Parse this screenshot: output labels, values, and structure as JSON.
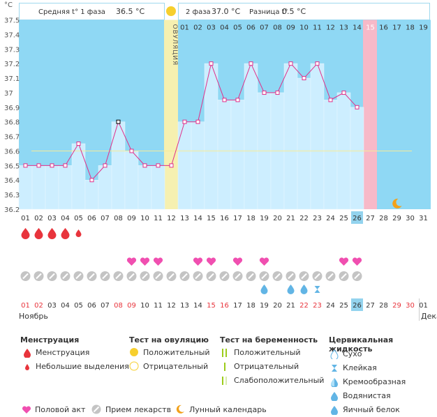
{
  "chart_data": {
    "type": "line",
    "y_unit": "°C",
    "ylim": [
      36.2,
      37.5
    ],
    "y_ticks": [
      "37.5",
      "37.4",
      "37.3",
      "37.2",
      "37.1",
      "37",
      "36.9",
      "36.8",
      "36.7",
      "36.6",
      "36.5",
      "36.4",
      "36.3",
      "36.2"
    ],
    "x_labels": [
      "01",
      "02",
      "03",
      "04",
      "05",
      "06",
      "07",
      "08",
      "09",
      "10",
      "11",
      "12",
      "13",
      "14",
      "15",
      "16",
      "17",
      "18",
      "19",
      "20",
      "21",
      "22",
      "23",
      "24",
      "25",
      "26",
      "27",
      "28",
      "29",
      "30",
      "31"
    ],
    "series": [
      {
        "values": [
          36.5,
          36.5,
          36.5,
          36.5,
          36.65,
          36.4,
          36.5,
          36.8,
          36.6,
          36.5,
          36.5,
          36.5,
          36.8,
          36.8,
          37.2,
          36.95,
          36.95,
          37.2,
          37.0,
          37.0,
          37.2,
          37.1,
          37.2,
          36.95,
          37.0,
          36.9
        ]
      }
    ],
    "coverline": 36.6,
    "today_index": 25,
    "ovulation_index": 11,
    "phase_labels": [
      "01",
      "02",
      "03",
      "04",
      "05",
      "06",
      "07",
      "08",
      "09",
      "10",
      "11",
      "12",
      "13",
      "14",
      "15",
      "16",
      "17",
      "18",
      "19"
    ],
    "delay_phase_index": 14
  },
  "header": {
    "phase1_label": "Средняя t° 1 фаза",
    "phase1_value": "36.5 °C",
    "phase2_label": "2 фаза",
    "phase2_value": "37.0 °C",
    "diff_label": "Разница t°",
    "diff_value": "0.5 °C",
    "ovulation_label": "ОВУЛЯЦИЯ"
  },
  "rows": {
    "menstruation": {
      "big": [
        0,
        1,
        2,
        3
      ],
      "small": [
        4
      ]
    },
    "hearts": [
      8,
      9,
      10,
      13,
      14,
      16,
      18,
      24,
      25
    ],
    "pills_days": [
      0,
      1,
      2,
      3,
      4,
      5,
      6,
      7,
      8,
      9,
      10,
      11,
      12,
      13,
      14,
      15,
      16,
      17,
      18,
      19,
      20,
      21,
      22,
      23,
      24,
      25
    ],
    "fluid_drop": [
      18,
      20,
      21
    ],
    "fluid_sticky": [
      22
    ],
    "moon_index": 28
  },
  "bottom_dates": {
    "labels": [
      "01",
      "02",
      "03",
      "04",
      "05",
      "06",
      "07",
      "08",
      "09",
      "10",
      "11",
      "12",
      "13",
      "14",
      "15",
      "16",
      "17",
      "18",
      "19",
      "20",
      "21",
      "22",
      "23",
      "24",
      "25",
      "26",
      "27",
      "28",
      "29",
      "30",
      "01"
    ],
    "red": [
      0,
      1,
      7,
      8,
      14,
      15,
      21,
      22,
      28,
      29
    ],
    "month1": "Ноябрь",
    "month2": "Дека"
  },
  "legend": {
    "menstr_title": "Менструация",
    "menstr_items": [
      "Менструация",
      "Небольшие выделения"
    ],
    "ovu_title": "Тест на овуляцию",
    "ovu_items": [
      "Положительный",
      "Отрицательный"
    ],
    "preg_title": "Тест на беременность",
    "preg_items": [
      "Положительный",
      "Отрицательный",
      "Слабоположительный"
    ],
    "fluid_title": "Цервикальная жидкость",
    "fluid_items": [
      "Сухо",
      "Клейкая",
      "Кремообразная",
      "Водянистая",
      "Яичный белок"
    ],
    "extra_items": [
      "Половой акт",
      "Прием лекарств",
      "Лунный календарь"
    ]
  },
  "colors": {
    "sky": "#8fd8f4",
    "bar_fill": "#cdeeff",
    "line": "#e0308a",
    "ovulation": "#f6f0b0",
    "delay": "#f7b9c8",
    "red": "#e8343c",
    "heart": "#f04fb0",
    "moon": "#f2a11a",
    "today_bg": "#93d3ee"
  }
}
